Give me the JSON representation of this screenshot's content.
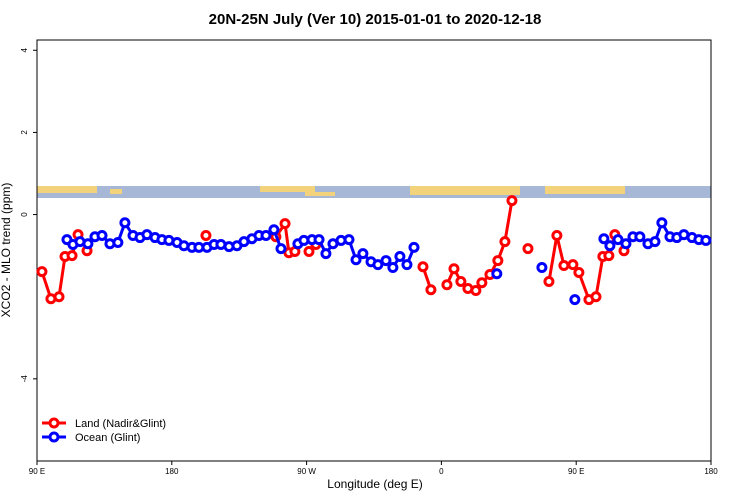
{
  "chart_data": {
    "type": "line",
    "title": "20N-25N July (Ver 10)   2015-01-01 to 2020-12-18",
    "xlabel": "Longitude (deg E)",
    "ylabel": "XCO2 - MLO trend (ppm)",
    "xlim": [
      90,
      540
    ],
    "ylim": [
      -6.0,
      4.25
    ],
    "xticks": [
      {
        "value": 90,
        "label": "90 E"
      },
      180,
      {
        "value": 270,
        "label": "90 W"
      },
      {
        "value": 360,
        "label": "0"
      },
      {
        "value": 450,
        "label": "90 E"
      },
      {
        "value": 540,
        "label": "180"
      }
    ],
    "yticks": [
      4,
      2,
      0,
      -4
    ],
    "legend": "bottom-left",
    "series": [
      {
        "name": "Land (Nadir&Glint)",
        "color": "#ff0000",
        "x": [
          93.3,
          99.3,
          104.7,
          108.7,
          113.4,
          117.4,
          null,
          123.4,
          null,
          202.8,
          null,
          249.5,
          255.6,
          258.2,
          262.2,
          null,
          271.6,
          276.2,
          null,
          347.7,
          353.0,
          null,
          363.7,
          368.4,
          373.0,
          377.7,
          383.0,
          387.0,
          392.4,
          397.7,
          402.4,
          407.1,
          null,
          417.8,
          null,
          431.8,
          437.1,
          441.8,
          447.8,
          451.8,
          458.5,
          463.2,
          467.8,
          471.8,
          475.8,
          null,
          481.9
        ],
        "values": [
          -1.39,
          -2.05,
          -2.0,
          -1.02,
          -1.0,
          -0.49,
          null,
          -0.88,
          null,
          -0.51,
          null,
          -0.54,
          -0.22,
          -0.93,
          -0.9,
          null,
          -0.9,
          -0.73,
          null,
          -1.27,
          -1.83,
          null,
          -1.71,
          -1.32,
          -1.63,
          -1.8,
          -1.85,
          -1.66,
          -1.46,
          -1.12,
          -0.66,
          0.34,
          null,
          -0.83,
          null,
          -1.63,
          -0.51,
          -1.24,
          -1.22,
          -1.41,
          -2.07,
          -2.0,
          -1.02,
          -1.0,
          -0.49,
          null,
          -0.88
        ]
      },
      {
        "name": "Ocean (Glint)",
        "color": "#0000ff",
        "x": [
          110.0,
          114.0,
          118.7,
          124.0,
          128.7,
          133.4,
          138.7,
          144.0,
          148.7,
          154.1,
          158.8,
          163.4,
          168.8,
          173.4,
          178.1,
          183.5,
          188.1,
          193.5,
          198.1,
          203.5,
          208.2,
          212.8,
          218.2,
          223.5,
          228.2,
          233.5,
          238.2,
          242.9,
          248.2,
          252.9,
          null,
          264.2,
          268.2,
          273.6,
          278.3,
          282.9,
          287.6,
          293.0,
          298.3,
          303.0,
          307.6,
          313.0,
          317.6,
          323.0,
          327.6,
          332.3,
          337.0,
          341.7,
          null,
          397.0,
          null,
          427.1,
          null,
          449.1,
          null,
          468.5,
          472.5,
          477.9,
          483.2,
          487.9,
          492.5,
          497.9,
          502.6,
          507.2,
          512.6,
          517.2,
          521.9,
          527.3,
          531.9,
          536.6
        ],
        "values": [
          -0.61,
          -0.73,
          -0.66,
          -0.71,
          -0.54,
          -0.51,
          -0.71,
          -0.68,
          -0.2,
          -0.51,
          -0.56,
          -0.49,
          -0.56,
          -0.61,
          -0.63,
          -0.68,
          -0.76,
          -0.8,
          -0.8,
          -0.8,
          -0.73,
          -0.73,
          -0.78,
          -0.76,
          -0.66,
          -0.59,
          -0.51,
          -0.51,
          -0.37,
          -0.83,
          null,
          -0.71,
          -0.63,
          -0.61,
          -0.61,
          -0.95,
          -0.71,
          -0.63,
          -0.61,
          -1.1,
          -0.95,
          -1.15,
          -1.22,
          -1.12,
          -1.29,
          -1.02,
          -1.22,
          -0.8,
          null,
          -1.44,
          null,
          -1.29,
          null,
          -2.07,
          null,
          -0.59,
          -0.76,
          -0.61,
          -0.71,
          -0.54,
          -0.54,
          -0.71,
          -0.66,
          -0.2,
          -0.54,
          -0.56,
          -0.49,
          -0.56,
          -0.61,
          -0.63
        ]
      }
    ]
  }
}
